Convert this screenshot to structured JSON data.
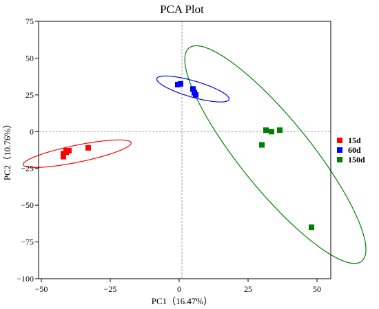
{
  "chart_data": {
    "type": "scatter",
    "title": "PCA Plot",
    "xlabel": "PC1（16.47%）",
    "ylabel": "PC2（10.76%）",
    "xlim": [
      -51,
      55
    ],
    "ylim": [
      -100,
      75
    ],
    "xticks": [
      -50,
      -25,
      0,
      25,
      50
    ],
    "yticks": [
      75,
      50,
      25,
      0,
      -25,
      -50,
      -75,
      -100
    ],
    "grid": false,
    "reference_lines": {
      "x": 0,
      "y": 0,
      "style": "dashed"
    },
    "legend_position": "right",
    "marker": "square",
    "series": [
      {
        "name": "15d",
        "color": "#ff0000",
        "points": [
          [
            -42,
            -15
          ],
          [
            -41,
            -13
          ],
          [
            -42,
            -17
          ],
          [
            -40,
            -13
          ],
          [
            -41,
            -14
          ],
          [
            -33,
            -11
          ]
        ],
        "ellipse": {
          "center": [
            -37,
            -15
          ],
          "semi_major": 21,
          "semi_minor": 5.5,
          "angle_deg": 22
        }
      },
      {
        "name": "60d",
        "color": "#0000ff",
        "points": [
          [
            -0.5,
            32
          ],
          [
            0.5,
            32.5
          ],
          [
            5,
            29
          ],
          [
            5.5,
            26.5
          ],
          [
            6,
            25
          ]
        ],
        "ellipse": {
          "center": [
            5,
            29
          ],
          "semi_major": 15,
          "semi_minor": 5,
          "angle_deg": -31
        }
      },
      {
        "name": "150d",
        "color": "#008000",
        "points": [
          [
            30,
            -9
          ],
          [
            31.5,
            1
          ],
          [
            33.5,
            0
          ],
          [
            36.5,
            1
          ],
          [
            48,
            -65
          ]
        ],
        "ellipse": {
          "center": [
            34.9,
            -15.6
          ],
          "semi_major": 79.6,
          "semi_minor": 14.9,
          "angle_deg": -68
        }
      }
    ]
  }
}
